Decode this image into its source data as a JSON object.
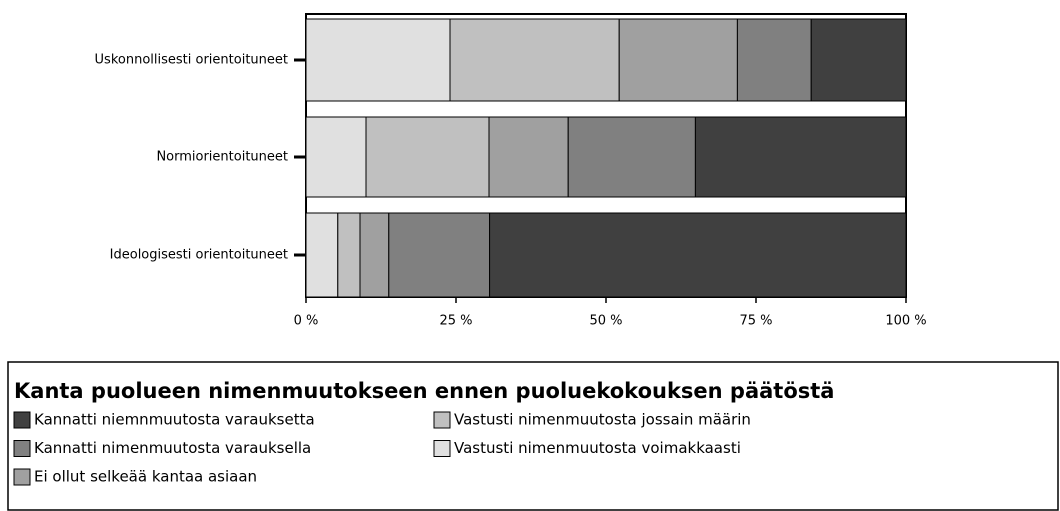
{
  "chart_data": {
    "type": "stacked-bar-horizontal",
    "legend_title": "Kanta puolueen nimenmuutokseen ennen  puoluekokouksen päätöstä",
    "categories": [
      "Uskonnollisesti orientoituneet",
      "Normiorientoituneet",
      "Ideologisesti orientoituneet"
    ],
    "series": [
      {
        "name": "Kannatti niemnmuutosta varauksetta",
        "color": "#404040",
        "values": [
          15.8,
          35.1,
          69.4
        ]
      },
      {
        "name": "Kannatti nimenmuutosta varauksella",
        "color": "#808080",
        "values": [
          12.3,
          21.2,
          16.8
        ]
      },
      {
        "name": "Ei ollut selkeää kantaa asiaan",
        "color": "#a0a0a0",
        "values": [
          19.7,
          13.2,
          4.8
        ]
      },
      {
        "name": "Vastusti nimenmuutosta jossain määrin",
        "color": "#c0c0c0",
        "values": [
          28.2,
          20.5,
          3.7
        ]
      },
      {
        "name": "Vastusti nimenmuutosta voimakkaasti",
        "color": "#e0e0e0",
        "values": [
          24,
          10,
          5.3
        ]
      }
    ],
    "xlim": [
      0,
      100
    ],
    "xticks": [
      {
        "value": 0,
        "label": "0 %"
      },
      {
        "value": 25,
        "label": "25 %"
      },
      {
        "value": 50,
        "label": "50 %"
      },
      {
        "value": 75,
        "label": "75 %"
      },
      {
        "value": 100,
        "label": "100 %"
      }
    ],
    "legend_position": "bottom"
  }
}
